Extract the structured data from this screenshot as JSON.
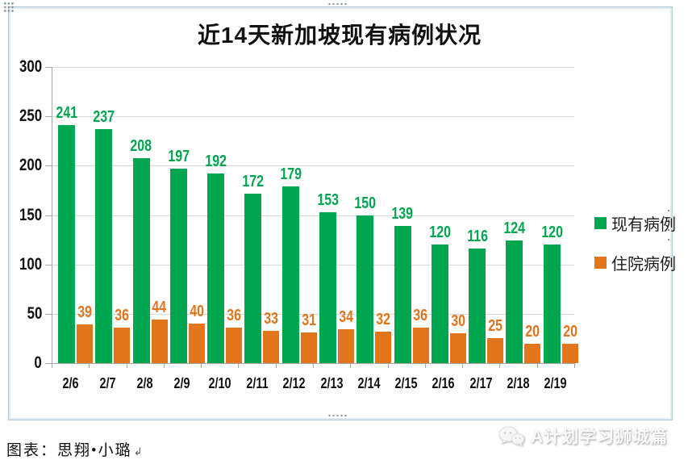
{
  "chart_data": {
    "type": "bar",
    "title": "近14天新加坡现有病例状况",
    "categories": [
      "2/6",
      "2/7",
      "2/8",
      "2/9",
      "2/10",
      "2/11",
      "2/12",
      "2/13",
      "2/14",
      "2/15",
      "2/16",
      "2/17",
      "2/18",
      "2/19"
    ],
    "series": [
      {
        "name": "现有病例",
        "color": "#00a550",
        "values": [
          241,
          237,
          208,
          197,
          192,
          172,
          179,
          153,
          150,
          139,
          120,
          116,
          124,
          120
        ]
      },
      {
        "name": "住院病例",
        "color": "#e0751c",
        "values": [
          39,
          36,
          44,
          40,
          36,
          33,
          31,
          34,
          32,
          36,
          30,
          25,
          20,
          20
        ]
      }
    ],
    "ylim": [
      0,
      300
    ],
    "yticks": [
      0,
      50,
      100,
      150,
      200,
      250,
      300
    ],
    "xlabel": "",
    "ylabel": "",
    "grid": true,
    "legend_position": "right",
    "value_labels": true
  },
  "footer": {
    "credit": "图表：思翔•小璐",
    "return_mark": "↲"
  },
  "watermark": {
    "text": "A计划学习狮城篇",
    "icon": "wechat-icon"
  },
  "colors": {
    "bar_existing": "#00a550",
    "bar_hospitalized": "#e0751c",
    "gridline": "#d9d9d9",
    "axis": "#a6a6a6",
    "title_text": "#111111",
    "frame_border": "#b3c7d1",
    "handle_dots": "#7c95a0",
    "watermark_text": "#fafafa"
  }
}
